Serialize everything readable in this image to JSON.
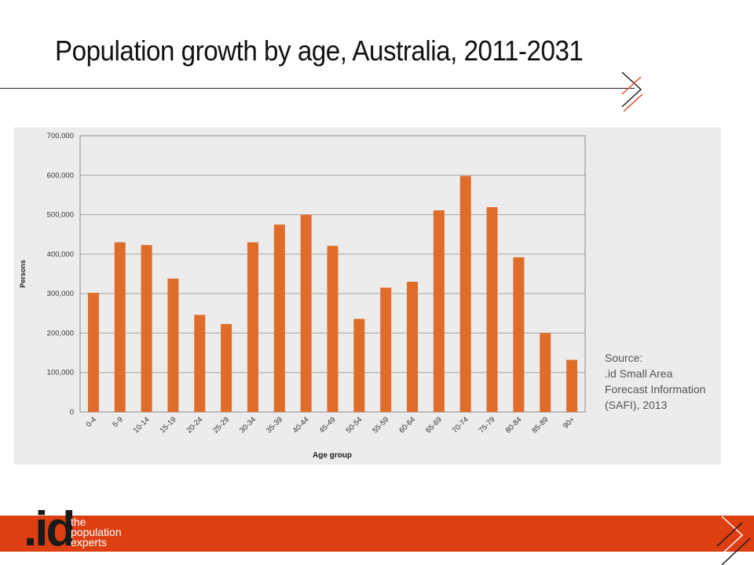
{
  "slide": {
    "title": "Population growth by age, Australia, 2011-2031"
  },
  "source": {
    "lines": [
      "Source:",
      ".id Small Area",
      "Forecast Information",
      "(SAFI), 2013"
    ]
  },
  "branding": {
    "logo_text": ".id",
    "tagline": [
      "the",
      "population",
      "experts"
    ],
    "accent_color": "#dd3f13",
    "bar_color": "#e06c2a"
  },
  "chart_data": {
    "type": "bar",
    "categories": [
      "0-4",
      "5-9",
      "10-14",
      "15-19",
      "20-24",
      "25-29",
      "30-34",
      "35-39",
      "40-44",
      "45-49",
      "50-54",
      "55-59",
      "60-64",
      "65-69",
      "70-74",
      "75-79",
      "80-84",
      "85-89",
      "90+"
    ],
    "values": [
      302000,
      430000,
      423000,
      338000,
      246000,
      223000,
      430000,
      475000,
      500000,
      421000,
      236000,
      315000,
      330000,
      511000,
      598000,
      519000,
      392000,
      200000,
      132000
    ],
    "title": "",
    "xlabel": "Age group",
    "ylabel": "Persons",
    "ylim": [
      0,
      700000
    ],
    "yticks": [
      "0",
      "100,000",
      "200,000",
      "300,000",
      "400,000",
      "500,000",
      "600,000",
      "700,000"
    ],
    "grid": true,
    "legend": "none"
  }
}
